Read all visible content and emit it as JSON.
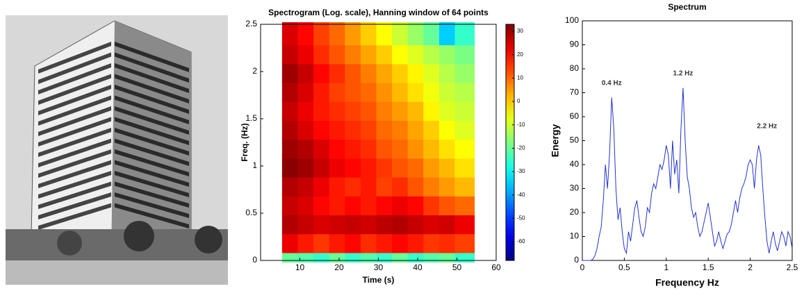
{
  "chart_data": [
    {
      "type": "heatmap",
      "title": "Spectrogram (Log. scale), Hanning window of 64 points",
      "xlabel": "Time (s)",
      "ylabel": "Freq. (Hz)",
      "xlim": [
        0,
        60
      ],
      "xticks": [
        10,
        20,
        30,
        40,
        50,
        60
      ],
      "ylim": [
        0,
        2.5
      ],
      "yticks": [
        0,
        0.5,
        1,
        1.5,
        2,
        2.5
      ],
      "clim": [
        -68,
        33
      ],
      "cticks": [
        30,
        20,
        10,
        0,
        -10,
        -20,
        -30,
        -40,
        -50,
        -60
      ],
      "colormap": "jet",
      "x_edges": [
        6,
        10,
        14,
        18,
        22,
        26,
        30,
        34,
        38,
        42,
        46,
        50,
        54
      ],
      "y_edges": [
        0,
        0.1,
        0.3,
        0.5,
        0.7,
        0.9,
        1.1,
        1.3,
        1.5,
        1.7,
        1.9,
        2.1,
        2.3,
        2.5
      ],
      "z": [
        [
          -20,
          -22,
          -25,
          -20,
          -25,
          -22,
          -25,
          -20,
          -25,
          -22,
          -20,
          -25
        ],
        [
          22,
          18,
          15,
          18,
          20,
          16,
          18,
          20,
          18,
          15,
          16,
          14
        ],
        [
          28,
          26,
          24,
          25,
          26,
          25,
          27,
          28,
          26,
          24,
          25,
          22
        ],
        [
          26,
          24,
          20,
          18,
          20,
          18,
          20,
          22,
          20,
          15,
          12,
          10
        ],
        [
          28,
          26,
          22,
          18,
          16,
          18,
          14,
          16,
          12,
          8,
          5,
          2
        ],
        [
          32,
          30,
          26,
          22,
          20,
          18,
          15,
          12,
          10,
          5,
          2,
          -2
        ],
        [
          30,
          28,
          24,
          20,
          18,
          16,
          12,
          10,
          6,
          2,
          -2,
          -5
        ],
        [
          28,
          24,
          20,
          18,
          16,
          14,
          10,
          8,
          4,
          0,
          -5,
          -8
        ],
        [
          26,
          22,
          18,
          16,
          14,
          12,
          8,
          5,
          2,
          -4,
          -8,
          -10
        ],
        [
          28,
          24,
          18,
          14,
          12,
          10,
          6,
          2,
          -2,
          -6,
          -10,
          -12
        ],
        [
          30,
          26,
          20,
          16,
          12,
          8,
          4,
          0,
          -4,
          -8,
          -12,
          -15
        ],
        [
          26,
          22,
          16,
          12,
          8,
          4,
          0,
          -5,
          -8,
          -12,
          -15,
          -18
        ],
        [
          24,
          20,
          14,
          10,
          5,
          0,
          -5,
          -10,
          -15,
          -20,
          -35,
          -25
        ]
      ]
    },
    {
      "type": "line",
      "title": "Spectrum",
      "xlabel": "Frequency Hz",
      "ylabel": "Energy",
      "xlim": [
        0,
        2.5
      ],
      "xticks": [
        0,
        0.5,
        1,
        1.5,
        2,
        2.5
      ],
      "ylim": [
        0,
        100
      ],
      "yticks": [
        0,
        10,
        20,
        30,
        40,
        50,
        60,
        70,
        80,
        90,
        100
      ],
      "color": "#2233cc",
      "x": [
        0,
        0.025,
        0.05,
        0.075,
        0.1,
        0.125,
        0.15,
        0.175,
        0.2,
        0.225,
        0.25,
        0.275,
        0.3,
        0.325,
        0.35,
        0.375,
        0.4,
        0.425,
        0.45,
        0.475,
        0.5,
        0.525,
        0.55,
        0.575,
        0.6,
        0.625,
        0.65,
        0.675,
        0.7,
        0.725,
        0.75,
        0.775,
        0.8,
        0.825,
        0.85,
        0.875,
        0.9,
        0.925,
        0.95,
        0.975,
        1,
        1.025,
        1.05,
        1.075,
        1.1,
        1.125,
        1.15,
        1.175,
        1.2,
        1.225,
        1.25,
        1.275,
        1.3,
        1.325,
        1.35,
        1.375,
        1.4,
        1.425,
        1.45,
        1.475,
        1.5,
        1.525,
        1.55,
        1.575,
        1.6,
        1.625,
        1.65,
        1.675,
        1.7,
        1.725,
        1.75,
        1.775,
        1.8,
        1.825,
        1.85,
        1.875,
        1.9,
        1.925,
        1.95,
        1.975,
        2,
        2.025,
        2.05,
        2.075,
        2.1,
        2.125,
        2.15,
        2.175,
        2.2,
        2.225,
        2.25,
        2.275,
        2.3,
        2.325,
        2.35,
        2.375,
        2.4,
        2.425,
        2.45,
        2.475,
        2.5
      ],
      "values": [
        0,
        0,
        0,
        0,
        0,
        0.5,
        2,
        5,
        10,
        14,
        25,
        40,
        30,
        45,
        68,
        55,
        30,
        17,
        22,
        12,
        5,
        3,
        12,
        8,
        15,
        22,
        25,
        18,
        12,
        10,
        14,
        22,
        20,
        28,
        32,
        30,
        35,
        40,
        38,
        42,
        48,
        44,
        30,
        50,
        36,
        42,
        28,
        55,
        72,
        50,
        35,
        30,
        22,
        18,
        20,
        14,
        10,
        12,
        16,
        20,
        24,
        18,
        12,
        6,
        8,
        12,
        8,
        5,
        8,
        11,
        12,
        15,
        20,
        25,
        20,
        26,
        30,
        32,
        35,
        40,
        42,
        40,
        30,
        42,
        48,
        44,
        30,
        18,
        8,
        3,
        8,
        12,
        7,
        4,
        8,
        12,
        10,
        6,
        12,
        10,
        5
      ],
      "annotations": [
        {
          "text": "0.4 Hz",
          "x": 0.35,
          "y": 74
        },
        {
          "text": "1.2 Hz",
          "x": 1.2,
          "y": 78
        },
        {
          "text": "2.2 Hz",
          "x": 2.2,
          "y": 56
        }
      ]
    }
  ]
}
